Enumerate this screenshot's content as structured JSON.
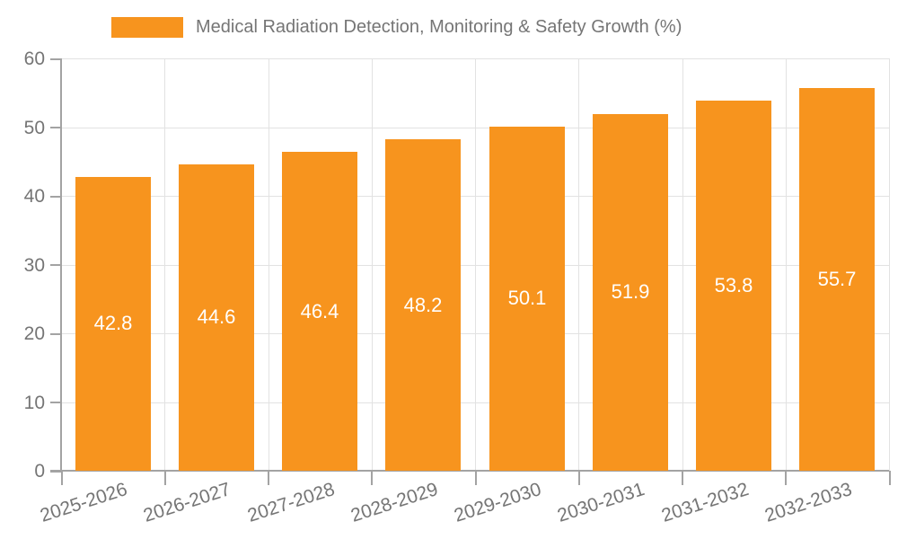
{
  "legend": {
    "label": "Medical Radiation Detection, Monitoring & Safety Growth (%)"
  },
  "chart_data": {
    "type": "bar",
    "title": "Medical Radiation Detection, Monitoring & Safety Growth (%)",
    "categories": [
      "2025-2026",
      "2026-2027",
      "2027-2028",
      "2028-2029",
      "2029-2030",
      "2030-2031",
      "2031-2032",
      "2032-2033"
    ],
    "values": [
      42.8,
      44.6,
      46.4,
      48.2,
      50.1,
      51.9,
      53.8,
      55.7
    ],
    "value_labels": [
      "42.8",
      "44.6",
      "46.4",
      "48.2",
      "50.1",
      "51.9",
      "53.8",
      "55.7"
    ],
    "xlabel": "",
    "ylabel": "",
    "ylim": [
      0,
      60
    ],
    "ytick_interval": 10,
    "ytick_labels": [
      "0",
      "10",
      "20",
      "30",
      "40",
      "50",
      "60"
    ],
    "grid": true,
    "legend_position": "top",
    "bar_label_position": "center"
  },
  "colors": {
    "bar": "#f7941e",
    "bar_label": "#ffffff",
    "grid": "#e2e2e2",
    "axis": "#a3a3a3",
    "tick_label": "#757575"
  }
}
